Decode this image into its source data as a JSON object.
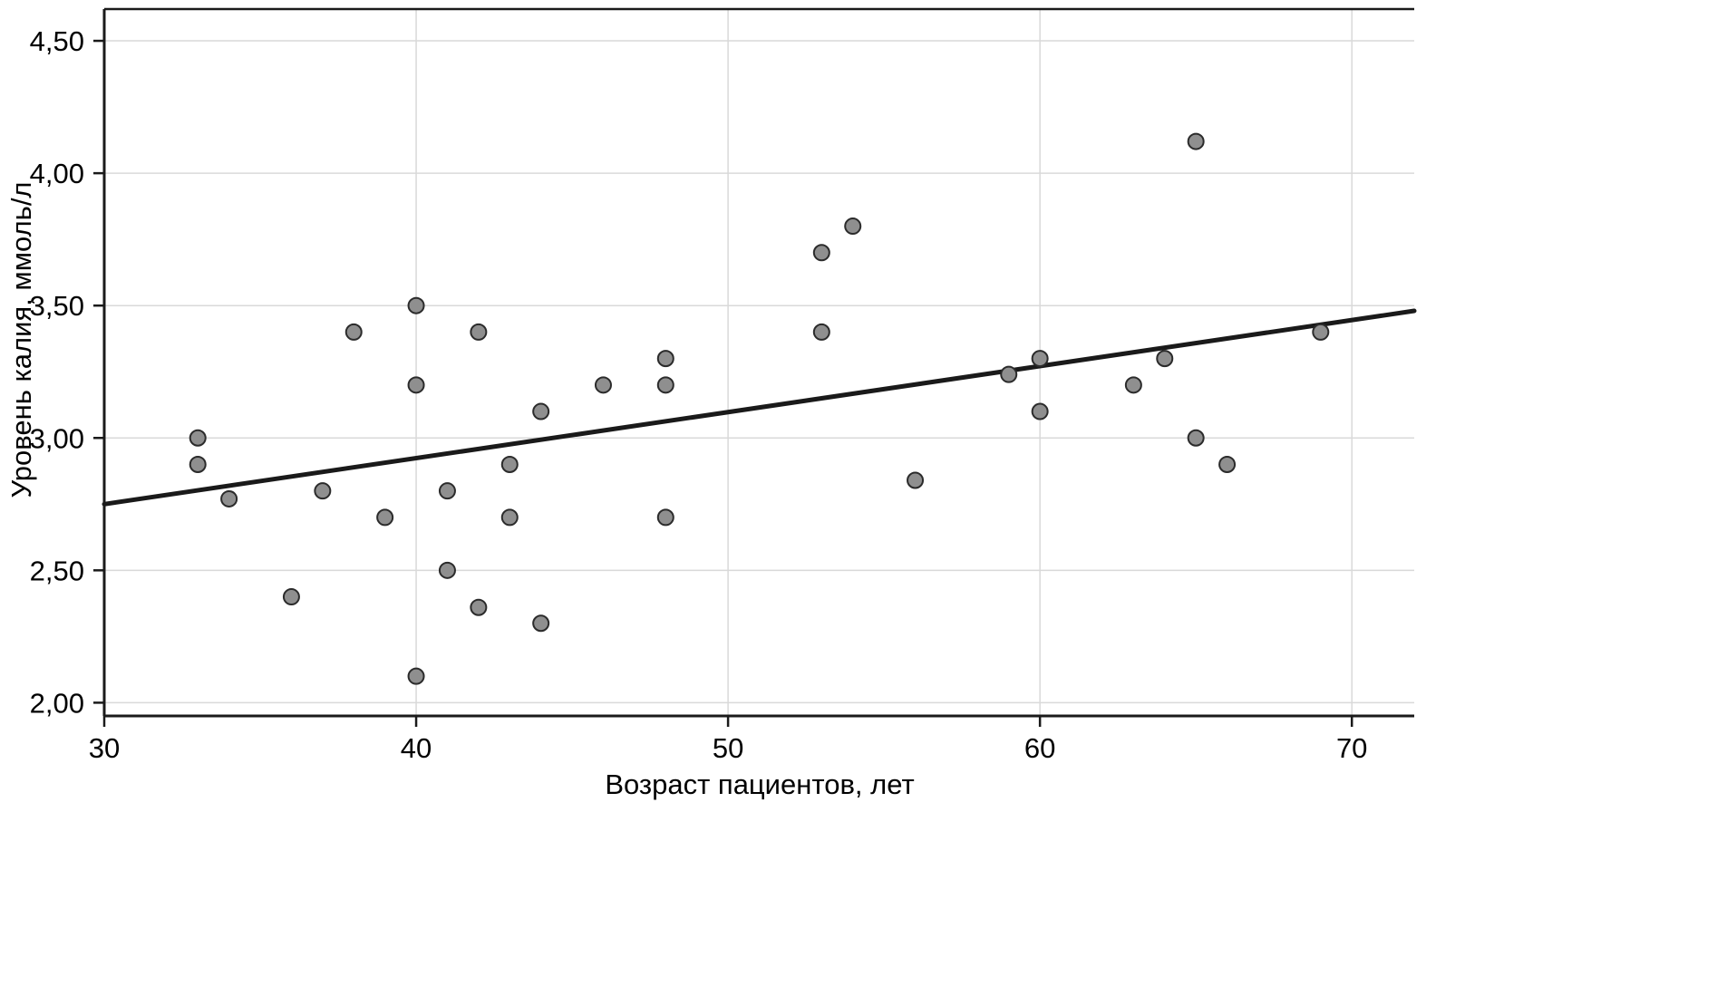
{
  "chart_data": {
    "type": "scatter",
    "xlabel": "Возраст пациентов, лет",
    "ylabel": "Уровень калия, ммоль/л",
    "xlim": [
      30,
      72
    ],
    "ylim": [
      1.95,
      4.62
    ],
    "x_ticks": [
      30,
      40,
      50,
      60,
      70
    ],
    "x_tick_labels": [
      "30",
      "40",
      "50",
      "60",
      "70"
    ],
    "y_ticks": [
      2.0,
      2.5,
      3.0,
      3.5,
      4.0,
      4.5
    ],
    "y_tick_labels": [
      "2,00",
      "2,50",
      "3,00",
      "3,50",
      "4,00",
      "4,50"
    ],
    "grid": true,
    "legend": "none",
    "points": [
      [
        33,
        3.0
      ],
      [
        33,
        2.9
      ],
      [
        34,
        2.77
      ],
      [
        36,
        2.4
      ],
      [
        37,
        2.8
      ],
      [
        38,
        3.4
      ],
      [
        39,
        2.7
      ],
      [
        40,
        3.5
      ],
      [
        40,
        3.2
      ],
      [
        40,
        2.1
      ],
      [
        41,
        2.8
      ],
      [
        41,
        2.5
      ],
      [
        42,
        3.4
      ],
      [
        42,
        2.36
      ],
      [
        43,
        2.9
      ],
      [
        43,
        2.7
      ],
      [
        44,
        3.1
      ],
      [
        44,
        2.3
      ],
      [
        46,
        3.2
      ],
      [
        48,
        3.3
      ],
      [
        48,
        3.2
      ],
      [
        48,
        2.7
      ],
      [
        53,
        3.7
      ],
      [
        53,
        3.4
      ],
      [
        54,
        3.8
      ],
      [
        56,
        2.84
      ],
      [
        59,
        3.24
      ],
      [
        60,
        3.3
      ],
      [
        60,
        3.1
      ],
      [
        63,
        3.2
      ],
      [
        64,
        3.3
      ],
      [
        65,
        4.12
      ],
      [
        65,
        3.0
      ],
      [
        66,
        2.9
      ],
      [
        69,
        3.4
      ]
    ],
    "trend_line": {
      "x1": 30,
      "y1": 2.75,
      "x2": 72,
      "y2": 3.48
    },
    "colors": {
      "background": "#ffffff",
      "axis": "#1a1a1a",
      "grid": "#d9d9d9",
      "line": "#1a1a1a",
      "point_fill": "#8f8f8f",
      "point_stroke": "#2b2b2b"
    }
  }
}
